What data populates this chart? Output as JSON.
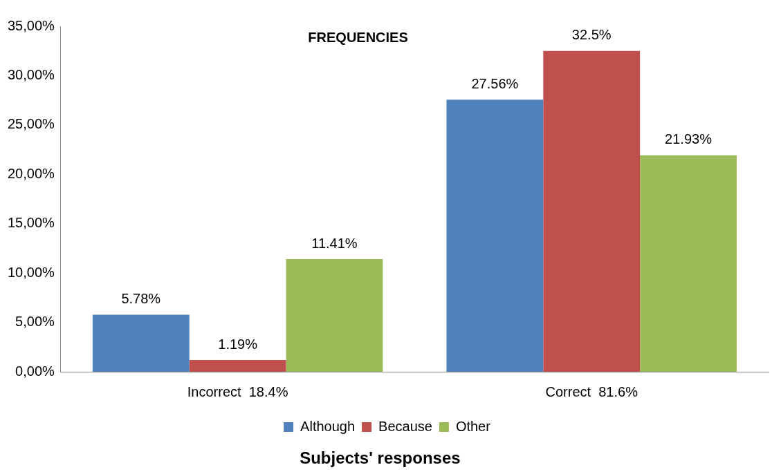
{
  "chart_data": {
    "type": "bar",
    "title": "FREQUENCIES",
    "xlabel": "Subjects' responses",
    "categories": [
      "Incorrect  18.4%",
      "Correct  81.6%"
    ],
    "series": [
      {
        "name": "Although",
        "color": "#4f81bd",
        "values": [
          5.78,
          27.56
        ],
        "value_labels": [
          "5.78%",
          "27.56%"
        ]
      },
      {
        "name": "Because",
        "color": "#c0504d",
        "values": [
          1.19,
          32.5
        ],
        "value_labels": [
          "1.19%",
          "32.5%"
        ]
      },
      {
        "name": "Other",
        "color": "#9bbb59",
        "values": [
          11.41,
          21.93
        ],
        "value_labels": [
          "11.41%",
          "21.93%"
        ]
      }
    ],
    "ylim": [
      0,
      35
    ],
    "yticks": [
      {
        "value": 0,
        "label": "0,00%"
      },
      {
        "value": 5,
        "label": "5,00%"
      },
      {
        "value": 10,
        "label": "10,00%"
      },
      {
        "value": 15,
        "label": "15,00%"
      },
      {
        "value": 20,
        "label": "20,00%"
      },
      {
        "value": 25,
        "label": "25,00%"
      },
      {
        "value": 30,
        "label": "30,00%"
      },
      {
        "value": 35,
        "label": "35,00%"
      }
    ],
    "grid": false,
    "legend": "bottom"
  }
}
